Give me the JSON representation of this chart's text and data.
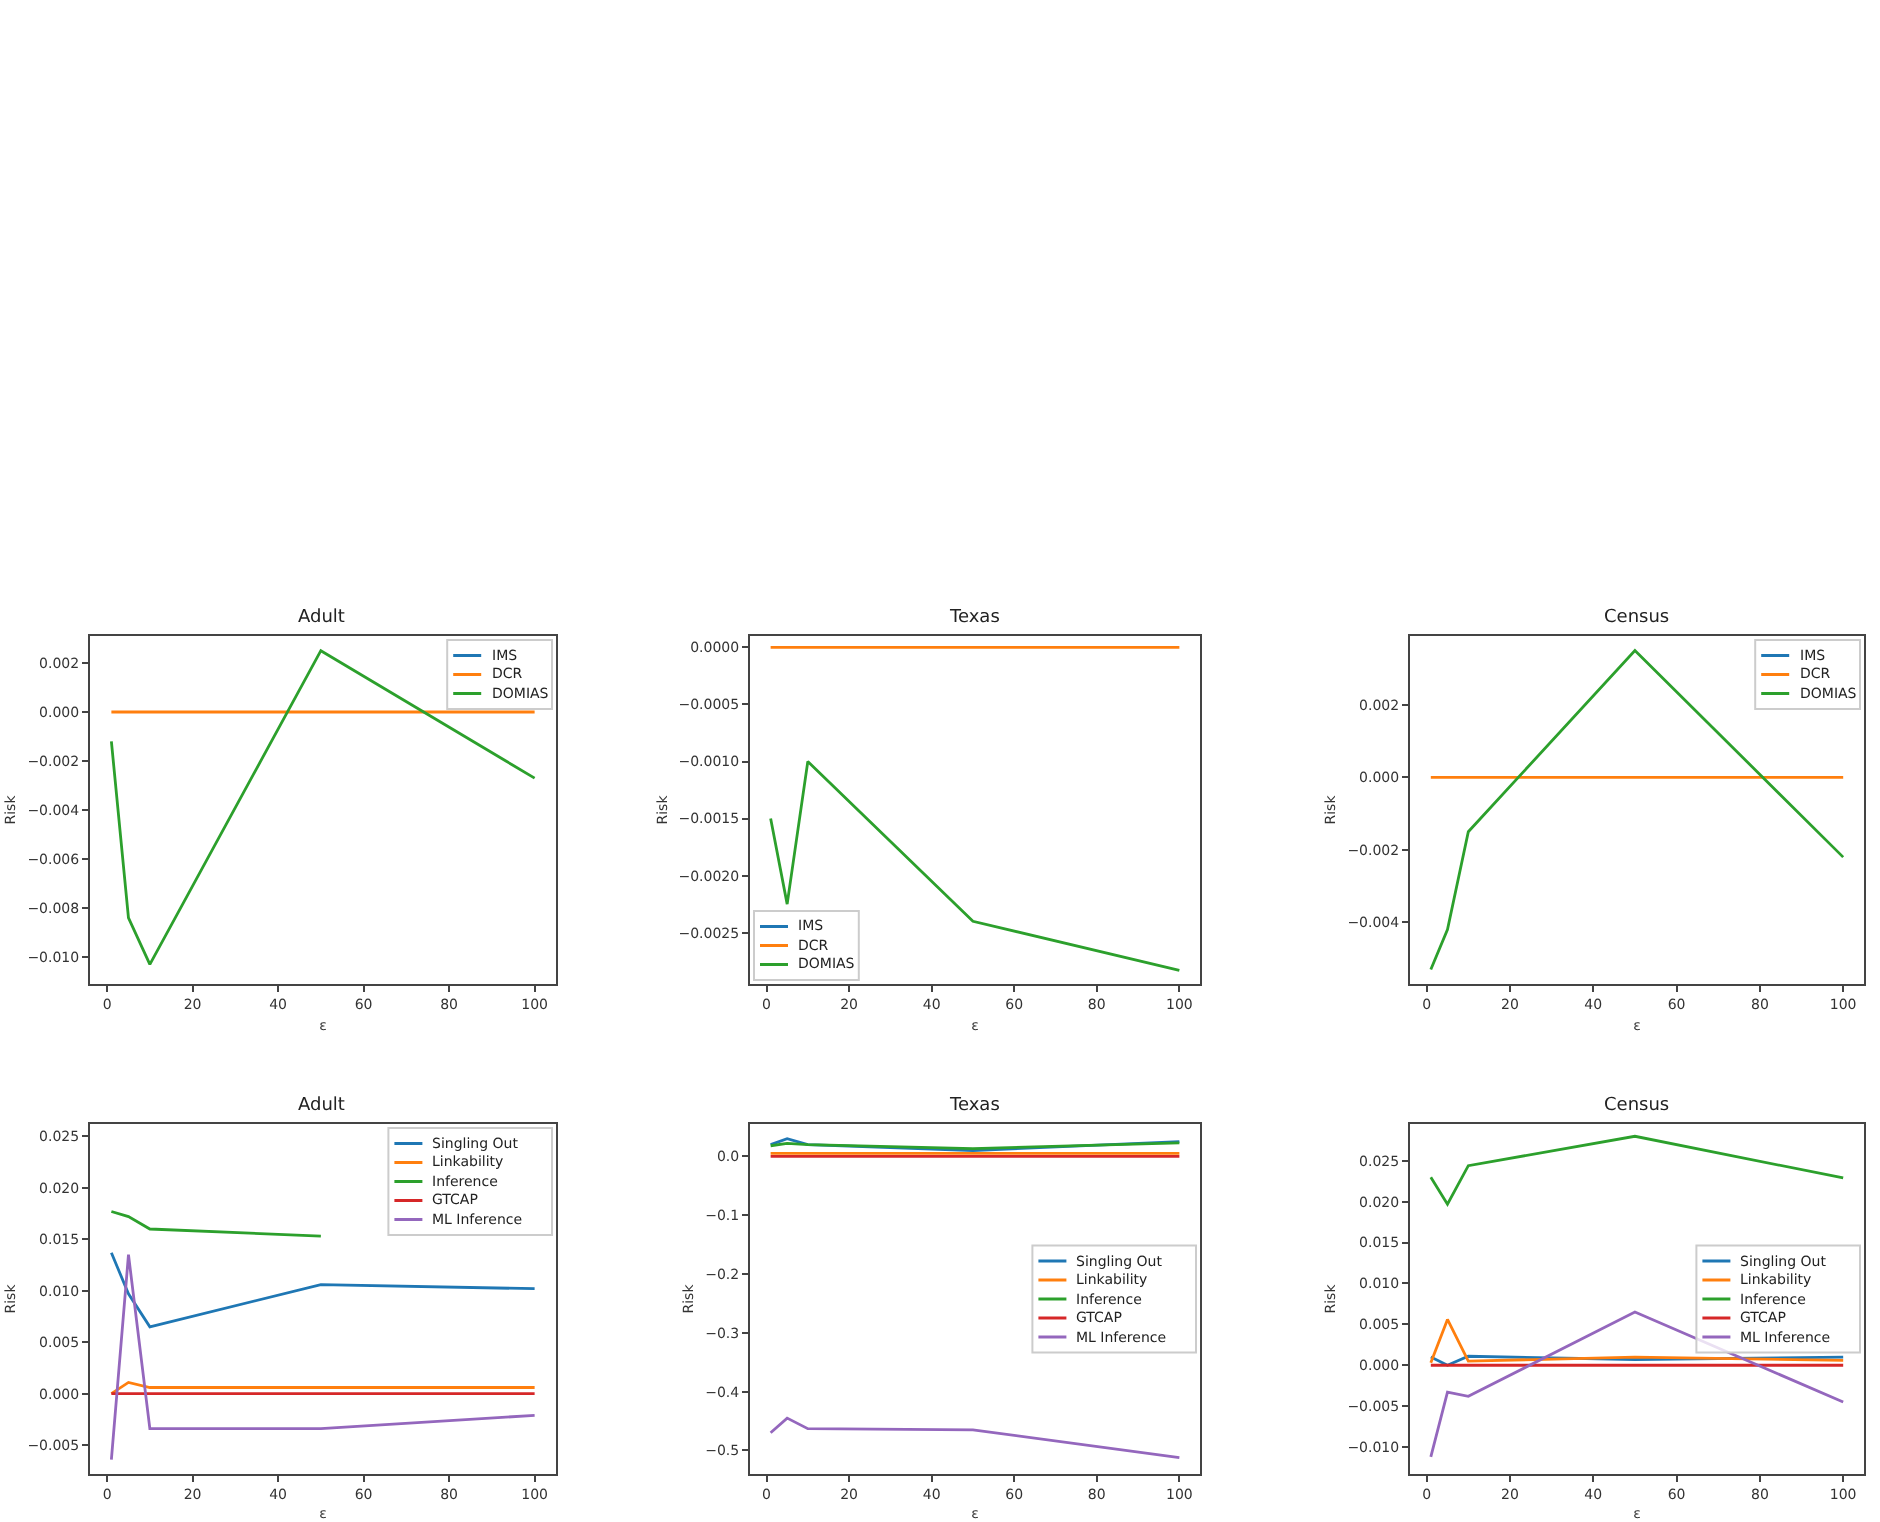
{
  "chart_data": [
    {
      "type": "line",
      "title": "Adult",
      "xlabel": "ε",
      "ylabel": "Risk",
      "x": [
        1,
        5,
        10,
        50,
        100
      ],
      "xlim": [
        -4,
        105
      ],
      "xticks": [
        0,
        20,
        40,
        60,
        80,
        100
      ],
      "ylim": [
        -0.0111,
        0.0031
      ],
      "yticks": [
        {
          "value": -0.01,
          "label": "−0.010"
        },
        {
          "value": -0.008,
          "label": "−0.008"
        },
        {
          "value": -0.006,
          "label": "−0.006"
        },
        {
          "value": -0.004,
          "label": "−0.004"
        },
        {
          "value": -0.002,
          "label": "−0.002"
        },
        {
          "value": 0,
          "label": "0.000"
        },
        {
          "value": 0.002,
          "label": "0.002"
        }
      ],
      "legend": "top right",
      "series": [
        {
          "name": "IMS",
          "color": "#1f77b4",
          "values": [
            null,
            null,
            null,
            null,
            null
          ]
        },
        {
          "name": "DCR",
          "color": "#ff7f0e",
          "values": [
            0,
            0,
            0,
            0,
            0
          ]
        },
        {
          "name": "DOMIAS",
          "color": "#2ca02c",
          "values": [
            -0.0012,
            -0.0084,
            -0.0103,
            0.0025,
            -0.0027
          ]
        }
      ]
    },
    {
      "type": "line",
      "title": "Texas",
      "xlabel": "ε",
      "ylabel": "Risk",
      "x": [
        1,
        5,
        10,
        50,
        100
      ],
      "xlim": [
        -4,
        105
      ],
      "xticks": [
        0,
        20,
        40,
        60,
        80,
        100
      ],
      "ylim": [
        -0.00295,
        0.0001
      ],
      "yticks": [
        {
          "value": -0.0025,
          "label": "−0.0025"
        },
        {
          "value": -0.002,
          "label": "−0.0020"
        },
        {
          "value": -0.0015,
          "label": "−0.0015"
        },
        {
          "value": -0.001,
          "label": "−0.0010"
        },
        {
          "value": -0.0005,
          "label": "−0.0005"
        },
        {
          "value": 0,
          "label": "0.0000"
        }
      ],
      "legend": "bottom left",
      "series": [
        {
          "name": "IMS",
          "color": "#1f77b4",
          "values": [
            null,
            null,
            null,
            null,
            null
          ]
        },
        {
          "name": "DCR",
          "color": "#ff7f0e",
          "values": [
            0,
            0,
            0,
            0,
            0
          ]
        },
        {
          "name": "DOMIAS",
          "color": "#2ca02c",
          "values": [
            -0.0015,
            -0.00225,
            -0.001,
            -0.0024,
            -0.00283
          ]
        }
      ]
    },
    {
      "type": "line",
      "title": "Census",
      "xlabel": "ε",
      "ylabel": "Risk",
      "x": [
        1,
        5,
        10,
        50,
        100
      ],
      "xlim": [
        -4,
        105
      ],
      "xticks": [
        0,
        20,
        40,
        60,
        80,
        100
      ],
      "ylim": [
        -0.0057,
        0.0039
      ],
      "yticks": [
        {
          "value": -0.004,
          "label": "−0.004"
        },
        {
          "value": -0.002,
          "label": "−0.002"
        },
        {
          "value": 0,
          "label": "0.000"
        },
        {
          "value": 0.002,
          "label": "0.002"
        }
      ],
      "legend": "top right",
      "series": [
        {
          "name": "IMS",
          "color": "#1f77b4",
          "values": [
            null,
            null,
            null,
            null,
            null
          ]
        },
        {
          "name": "DCR",
          "color": "#ff7f0e",
          "values": [
            0,
            0,
            0,
            0,
            0
          ]
        },
        {
          "name": "DOMIAS",
          "color": "#2ca02c",
          "values": [
            -0.0053,
            -0.0042,
            -0.0015,
            0.0035,
            -0.0022
          ]
        }
      ]
    },
    {
      "type": "line",
      "title": "Adult",
      "xlabel": "ε",
      "ylabel": "Risk",
      "x": [
        1,
        5,
        10,
        50,
        100
      ],
      "xlim": [
        -4,
        105
      ],
      "xticks": [
        0,
        20,
        40,
        60,
        80,
        100
      ],
      "ylim": [
        -0.0078,
        0.0262
      ],
      "yticks": [
        {
          "value": -0.005,
          "label": "−0.005"
        },
        {
          "value": 0,
          "label": "0.000"
        },
        {
          "value": 0.005,
          "label": "0.005"
        },
        {
          "value": 0.01,
          "label": "0.010"
        },
        {
          "value": 0.015,
          "label": "0.015"
        },
        {
          "value": 0.02,
          "label": "0.020"
        },
        {
          "value": 0.025,
          "label": "0.025"
        }
      ],
      "legend": "top right",
      "series": [
        {
          "name": "Singling Out",
          "color": "#1f77b4",
          "values": [
            0.0137,
            0.0097,
            0.0065,
            0.0106,
            0.0102
          ]
        },
        {
          "name": "Linkability",
          "color": "#ff7f0e",
          "values": [
            0.0,
            0.0011,
            0.0006,
            0.0006,
            0.0006
          ]
        },
        {
          "name": "Inference",
          "color": "#2ca02c",
          "values": [
            0.0177,
            0.0172,
            0.016,
            0.0153,
            null
          ]
        },
        {
          "name": "GTCAP",
          "color": "#d62728",
          "values": [
            0,
            0,
            0,
            0,
            0
          ]
        },
        {
          "name": "ML Inference",
          "color": "#9467bd",
          "values": [
            -0.0064,
            0.0135,
            -0.0034,
            -0.0034,
            -0.0021
          ]
        }
      ]
    },
    {
      "type": "line",
      "title": "Texas",
      "xlabel": "ε",
      "ylabel": "Risk",
      "x": [
        1,
        5,
        10,
        50,
        100
      ],
      "xlim": [
        -4,
        105
      ],
      "xticks": [
        0,
        20,
        40,
        60,
        80,
        100
      ],
      "ylim": [
        -0.54,
        0.055
      ],
      "yticks": [
        {
          "value": -0.5,
          "label": "−0.5"
        },
        {
          "value": -0.4,
          "label": "−0.4"
        },
        {
          "value": -0.3,
          "label": "−0.3"
        },
        {
          "value": -0.2,
          "label": "−0.2"
        },
        {
          "value": -0.1,
          "label": "−0.1"
        },
        {
          "value": 0,
          "label": "0.0"
        }
      ],
      "legend": "right",
      "series": [
        {
          "name": "Singling Out",
          "color": "#1f77b4",
          "values": [
            0.02,
            0.03,
            0.02,
            0.01,
            0.025
          ]
        },
        {
          "name": "Linkability",
          "color": "#ff7f0e",
          "values": [
            0.005,
            0.005,
            0.005,
            0.005,
            0.005
          ]
        },
        {
          "name": "Inference",
          "color": "#2ca02c",
          "values": [
            0.018,
            0.022,
            0.02,
            0.013,
            0.023
          ]
        },
        {
          "name": "GTCAP",
          "color": "#d62728",
          "values": [
            0,
            0,
            0,
            0,
            0
          ]
        },
        {
          "name": "ML Inference",
          "color": "#9467bd",
          "values": [
            -0.47,
            -0.445,
            -0.463,
            -0.465,
            -0.512
          ]
        }
      ]
    },
    {
      "type": "line",
      "title": "Census",
      "xlabel": "ε",
      "ylabel": "Risk",
      "x": [
        1,
        5,
        10,
        50,
        100
      ],
      "xlim": [
        -4,
        105
      ],
      "xticks": [
        0,
        20,
        40,
        60,
        80,
        100
      ],
      "ylim": [
        -0.0133,
        0.0295
      ],
      "yticks": [
        {
          "value": -0.01,
          "label": "−0.010"
        },
        {
          "value": -0.005,
          "label": "−0.005"
        },
        {
          "value": 0,
          "label": "0.000"
        },
        {
          "value": 0.005,
          "label": "0.005"
        },
        {
          "value": 0.01,
          "label": "0.010"
        },
        {
          "value": 0.015,
          "label": "0.015"
        },
        {
          "value": 0.02,
          "label": "0.020"
        },
        {
          "value": 0.025,
          "label": "0.025"
        }
      ],
      "legend": "right",
      "series": [
        {
          "name": "Singling Out",
          "color": "#1f77b4",
          "values": [
            0.001,
            0.0,
            0.0011,
            0.0007,
            0.001
          ]
        },
        {
          "name": "Linkability",
          "color": "#ff7f0e",
          "values": [
            0.0003,
            0.0056,
            0.0005,
            0.001,
            0.0006
          ]
        },
        {
          "name": "Inference",
          "color": "#2ca02c",
          "values": [
            0.023,
            0.0197,
            0.0244,
            0.028,
            0.0229
          ]
        },
        {
          "name": "GTCAP",
          "color": "#d62728",
          "values": [
            0,
            0,
            0,
            0,
            0
          ]
        },
        {
          "name": "ML Inference",
          "color": "#9467bd",
          "values": [
            -0.0112,
            -0.0033,
            -0.0038,
            0.0065,
            -0.0045
          ]
        }
      ]
    }
  ]
}
